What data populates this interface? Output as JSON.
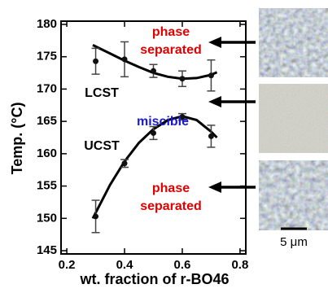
{
  "chart_data": {
    "type": "scatter",
    "x_label": "wt. fraction of r-BO46",
    "y_label": "Temp. (°C)",
    "xlim": [
      0.18,
      0.82
    ],
    "xticks": [
      0.2,
      0.4,
      0.6,
      0.8
    ],
    "ylim": [
      144.5,
      180.5
    ],
    "yticks": [
      145,
      150,
      155,
      160,
      165,
      170,
      175,
      180
    ],
    "series": [
      {
        "name": "LCST",
        "color": "#111111",
        "x": [
          0.3,
          0.4,
          0.5,
          0.6,
          0.7
        ],
        "values": [
          174.3,
          174.6,
          172.8,
          171.6,
          172.1
        ],
        "errors": [
          2.0,
          2.7,
          1.0,
          1.2,
          2.4
        ]
      },
      {
        "name": "UCST",
        "color": "#111111",
        "x": [
          0.3,
          0.4,
          0.5,
          0.6,
          0.7
        ],
        "values": [
          150.3,
          158.5,
          163.2,
          165.7,
          162.7
        ],
        "errors": [
          2.5,
          0.6,
          1.0,
          0.5,
          1.7
        ]
      }
    ],
    "fits": [
      {
        "x": [
          0.29,
          0.35,
          0.4,
          0.45,
          0.5,
          0.55,
          0.6,
          0.65,
          0.7,
          0.72
        ],
        "values": [
          176.8,
          175.5,
          174.4,
          173.4,
          172.5,
          171.9,
          171.6,
          171.7,
          172.2,
          172.6
        ]
      },
      {
        "x": [
          0.29,
          0.35,
          0.4,
          0.45,
          0.5,
          0.55,
          0.6,
          0.65,
          0.7,
          0.72
        ],
        "values": [
          150.0,
          155.2,
          158.8,
          161.7,
          163.8,
          165.2,
          165.8,
          165.2,
          163.4,
          162.5
        ]
      }
    ],
    "annotations": [
      {
        "lines": [
          "phase",
          "separated"
        ],
        "color": "#e00000"
      },
      {
        "lines": [
          "miscible"
        ],
        "color": "#1a1ad0"
      },
      {
        "lines": [
          "phase",
          "separated"
        ],
        "color": "#e00000"
      }
    ],
    "scale_bar_label": "5 μm"
  }
}
